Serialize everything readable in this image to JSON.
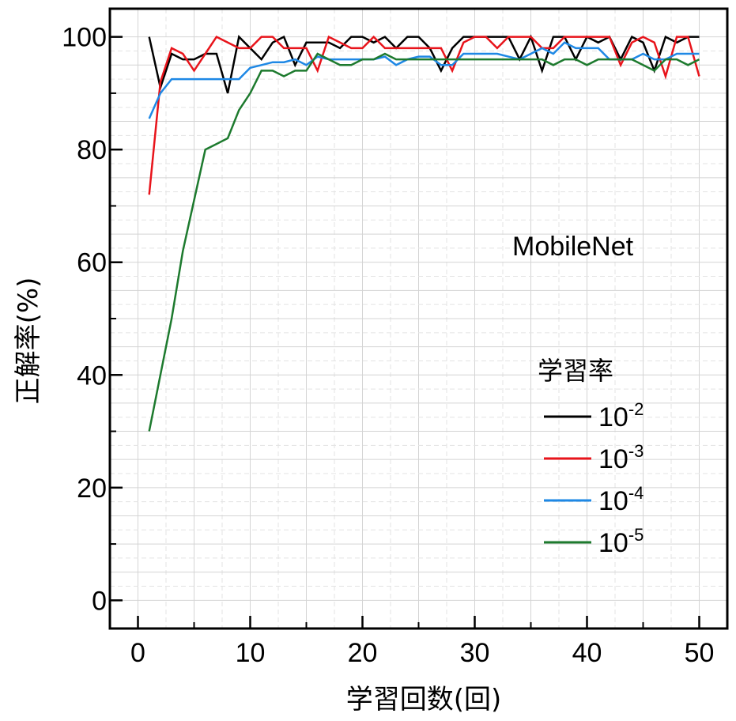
{
  "chart_data": {
    "type": "line",
    "xlabel": "学習回数(回)",
    "ylabel": "正解率(%)",
    "xlim": [
      -2.5,
      52.5
    ],
    "ylim": [
      -5,
      105
    ],
    "xticks": [
      0,
      10,
      20,
      30,
      40,
      50
    ],
    "yticks": [
      0,
      20,
      40,
      60,
      80,
      100
    ],
    "grid": true,
    "annotation": "MobileNet",
    "legend": {
      "title": "学習率",
      "placement": "right"
    },
    "series": [
      {
        "name": "10^-2",
        "base": "10",
        "exp": "-2",
        "color": "#000000",
        "x": [
          1,
          2,
          3,
          4,
          5,
          6,
          7,
          8,
          9,
          10,
          11,
          12,
          13,
          14,
          15,
          16,
          17,
          18,
          19,
          20,
          21,
          22,
          23,
          24,
          25,
          26,
          27,
          28,
          29,
          30,
          31,
          32,
          33,
          34,
          35,
          36,
          37,
          38,
          39,
          40,
          41,
          42,
          43,
          44,
          45,
          46,
          47,
          48,
          49,
          50
        ],
        "y": [
          100,
          91,
          97,
          96,
          96,
          97,
          97,
          90,
          100,
          98,
          96,
          99,
          100,
          95,
          99,
          99,
          99,
          98,
          100,
          100,
          99,
          100,
          98,
          100,
          100,
          98,
          94,
          98,
          100,
          100,
          100,
          100,
          100,
          96,
          100,
          94,
          100,
          100,
          96,
          100,
          99,
          100,
          96,
          100,
          99,
          94,
          100,
          99,
          100,
          100
        ]
      },
      {
        "name": "10^-3",
        "base": "10",
        "exp": "-3",
        "color": "#e8141b",
        "x": [
          1,
          2,
          3,
          4,
          5,
          6,
          7,
          8,
          9,
          10,
          11,
          12,
          13,
          14,
          15,
          16,
          17,
          18,
          19,
          20,
          21,
          22,
          23,
          24,
          25,
          26,
          27,
          28,
          29,
          30,
          31,
          32,
          33,
          34,
          35,
          36,
          37,
          38,
          39,
          40,
          41,
          42,
          43,
          44,
          45,
          46,
          47,
          48,
          49,
          50
        ],
        "y": [
          72,
          92,
          98,
          97,
          94,
          97,
          100,
          99,
          98,
          98,
          100,
          100,
          98,
          98,
          98,
          94,
          100,
          99,
          98,
          98,
          100,
          98,
          98,
          98,
          98,
          98,
          98,
          94,
          99,
          100,
          100,
          98,
          100,
          100,
          100,
          98,
          98,
          100,
          100,
          100,
          100,
          100,
          95,
          99,
          100,
          99,
          93,
          100,
          100,
          93
        ]
      },
      {
        "name": "10^-4",
        "base": "10",
        "exp": "-4",
        "color": "#1e88e5",
        "x": [
          1,
          2,
          3,
          4,
          5,
          6,
          7,
          8,
          9,
          10,
          11,
          12,
          13,
          14,
          15,
          16,
          17,
          18,
          19,
          20,
          21,
          22,
          23,
          24,
          25,
          26,
          27,
          28,
          29,
          30,
          31,
          32,
          33,
          34,
          35,
          36,
          37,
          38,
          39,
          40,
          41,
          42,
          43,
          44,
          45,
          46,
          47,
          48,
          49,
          50
        ],
        "y": [
          85.5,
          90,
          92.5,
          92.5,
          92.5,
          92.5,
          92.5,
          92.5,
          92.5,
          94.5,
          95,
          95.5,
          95.5,
          96,
          95,
          96.5,
          96,
          96,
          96,
          96,
          96,
          96.5,
          95,
          96,
          96.5,
          96.5,
          95,
          95,
          97,
          97,
          97,
          97,
          96.5,
          96,
          97,
          98,
          97,
          99,
          98,
          98,
          98,
          96,
          96,
          96,
          97,
          96,
          96,
          97,
          97,
          97
        ]
      },
      {
        "name": "10^-5",
        "base": "10",
        "exp": "-5",
        "color": "#1d7a2e",
        "x": [
          1,
          2,
          3,
          4,
          5,
          6,
          7,
          8,
          9,
          10,
          11,
          12,
          13,
          14,
          15,
          16,
          17,
          18,
          19,
          20,
          21,
          22,
          23,
          24,
          25,
          26,
          27,
          28,
          29,
          30,
          31,
          32,
          33,
          34,
          35,
          36,
          37,
          38,
          39,
          40,
          41,
          42,
          43,
          44,
          45,
          46,
          47,
          48,
          49,
          50
        ],
        "y": [
          30,
          40,
          50,
          62,
          71,
          80,
          81,
          82,
          87,
          90,
          94,
          94,
          93,
          94,
          94,
          97,
          96,
          95,
          95,
          96,
          96,
          97,
          96,
          96,
          96,
          96,
          96,
          96,
          96,
          96,
          96,
          96,
          96,
          96,
          96,
          96,
          95,
          96,
          96,
          95,
          96,
          96,
          96,
          96,
          95,
          94,
          96,
          96,
          95,
          96
        ]
      }
    ]
  }
}
